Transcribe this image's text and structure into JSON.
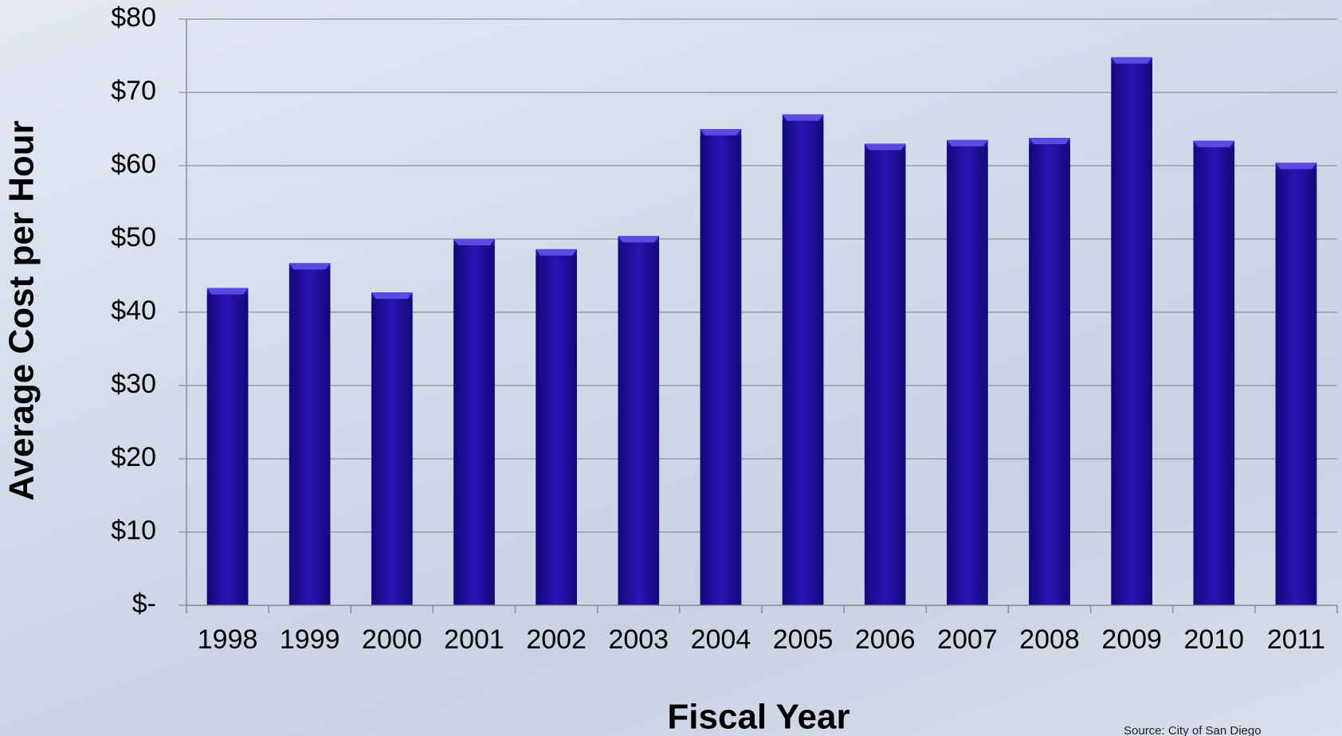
{
  "chart_data": {
    "type": "bar",
    "x_label": "Fiscal Year",
    "y_label": "Average Cost per Hour",
    "source": "Source: City of San Diego",
    "categories": [
      "1998",
      "1999",
      "2000",
      "2001",
      "2002",
      "2003",
      "2004",
      "2005",
      "2006",
      "2007",
      "2008",
      "2009",
      "2010",
      "2011"
    ],
    "values": [
      43.3,
      46.7,
      42.7,
      50,
      48.6,
      50.4,
      65,
      67,
      63,
      63.5,
      63.8,
      74.8,
      63.4,
      60.4
    ],
    "color": "#2010a8",
    "ylim": [
      0,
      80
    ],
    "yticks": [
      {
        "value": 0,
        "label": "$-"
      },
      {
        "value": 10,
        "label": "$10"
      },
      {
        "value": 20,
        "label": "$20"
      },
      {
        "value": 30,
        "label": "$30"
      },
      {
        "value": 40,
        "label": "$40"
      },
      {
        "value": 50,
        "label": "$50"
      },
      {
        "value": 60,
        "label": "$60"
      },
      {
        "value": 70,
        "label": "$70"
      },
      {
        "value": 80,
        "label": "$80"
      }
    ],
    "grid": true
  }
}
